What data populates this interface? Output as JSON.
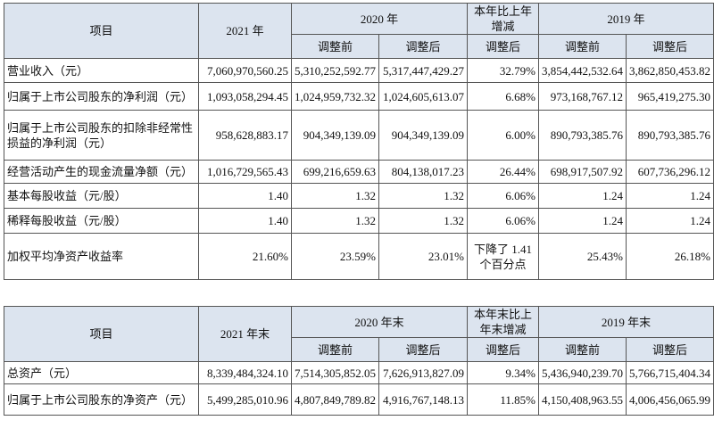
{
  "table1": {
    "header": [
      "项目",
      "2021 年",
      "2020 年",
      "本年比上年增减",
      "2019 年"
    ],
    "subheader": [
      "调整前",
      "调整后",
      "调整后",
      "调整前",
      "调整后"
    ],
    "rows": [
      [
        "营业收入（元）",
        "7,060,970,560.25",
        "5,310,252,592.77",
        "5,317,447,429.27",
        "32.79%",
        "3,854,442,532.64",
        "3,862,850,453.82"
      ],
      [
        "归属于上市公司股东的净利润（元）",
        "1,093,058,294.45",
        "1,024,959,732.32",
        "1,024,605,613.07",
        "6.68%",
        "973,168,767.12",
        "965,419,275.30"
      ],
      [
        "归属于上市公司股东的扣除非经常性损益的净利润（元）",
        "958,628,883.17",
        "904,349,139.09",
        "904,349,139.09",
        "6.00%",
        "890,793,385.76",
        "890,793,385.76"
      ],
      [
        "经营活动产生的现金流量净额（元）",
        "1,016,729,565.43",
        "699,216,659.63",
        "804,138,017.23",
        "26.44%",
        "698,917,507.92",
        "607,736,296.12"
      ],
      [
        "基本每股收益（元/股）",
        "1.40",
        "1.32",
        "1.32",
        "6.06%",
        "1.24",
        "1.24"
      ],
      [
        "稀释每股收益（元/股）",
        "1.40",
        "1.32",
        "1.32",
        "6.06%",
        "1.24",
        "1.24"
      ],
      [
        "加权平均净资产收益率",
        "21.60%",
        "23.59%",
        "23.01%",
        "下降了 1.41 个百分点",
        "25.43%",
        "26.18%"
      ]
    ]
  },
  "table2": {
    "header": [
      "项目",
      "2021 年末",
      "2020 年末",
      "本年末比上年末增减",
      "2019 年末"
    ],
    "subheader": [
      "调整前",
      "调整后",
      "调整后",
      "调整前",
      "调整后"
    ],
    "rows": [
      [
        "总资产（元）",
        "8,339,484,324.10",
        "7,514,305,852.05",
        "7,626,913,827.09",
        "9.34%",
        "5,436,940,239.70",
        "5,766,715,404.34"
      ],
      [
        "归属于上市公司股东的净资产（元）",
        "5,499,285,010.96",
        "4,807,849,789.82",
        "4,916,767,148.13",
        "11.85%",
        "4,150,408,963.55",
        "4,006,456,065.99"
      ]
    ]
  }
}
